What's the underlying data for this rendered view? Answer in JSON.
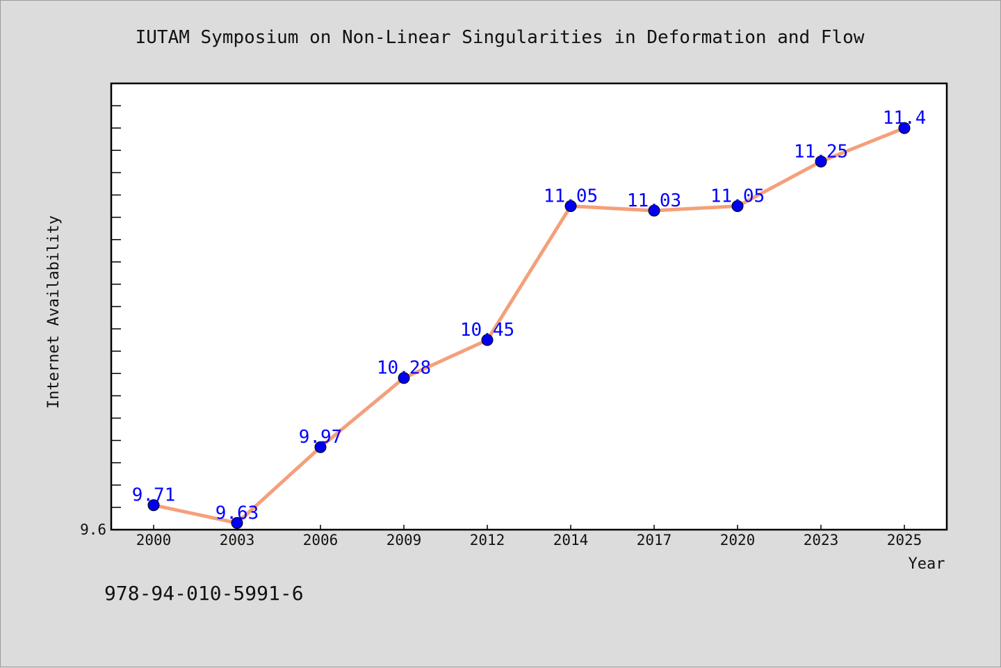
{
  "chart_data": {
    "type": "line",
    "title": "IUTAM Symposium on Non-Linear Singularities in Deformation and Flow",
    "xlabel": "Year",
    "ylabel": "Internet Availability",
    "categories": [
      "2000",
      "2003",
      "2006",
      "2009",
      "2012",
      "2014",
      "2017",
      "2020",
      "2023",
      "2025"
    ],
    "series": [
      {
        "values": [
          9.71,
          9.63,
          9.97,
          10.28,
          10.45,
          11.05,
          11.03,
          11.05,
          11.25,
          11.4
        ],
        "data_labels": [
          "9.71",
          "9.63",
          "9.97",
          "10.28",
          "10.45",
          "11.05",
          "11.03",
          "11.05",
          "11.25",
          "11.4"
        ],
        "line_color": "#f4a07a",
        "marker_color": "#0000ee"
      }
    ],
    "ylim": [
      9.6,
      11.6
    ],
    "y_tick_labels": [
      "9.6"
    ],
    "grid": false,
    "legend": "none"
  },
  "footer": {
    "isbn": "978-94-010-5991-6"
  }
}
